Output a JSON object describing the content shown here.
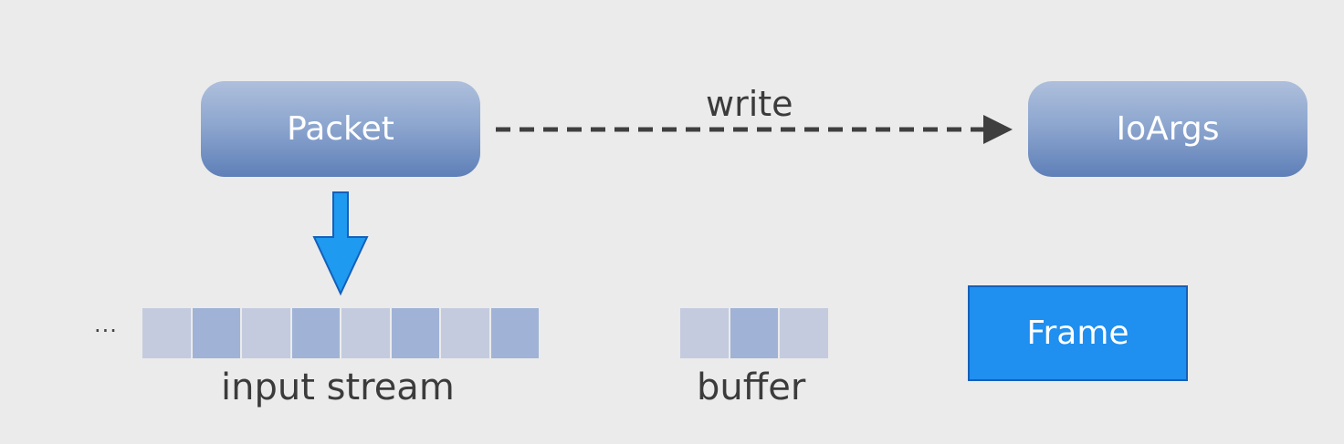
{
  "nodes": {
    "packet": "Packet",
    "ioargs": "IoArgs",
    "frame": "Frame"
  },
  "edges": {
    "write_label": "write"
  },
  "input_stream": {
    "label": "input stream",
    "ellipsis": "...",
    "cells": [
      "light",
      "dark",
      "light",
      "dark",
      "light",
      "dark",
      "light",
      "dark"
    ]
  },
  "buffer": {
    "label": "buffer",
    "cells": [
      "light",
      "dark",
      "light"
    ]
  },
  "colors": {
    "background": "#ebebeb",
    "node_gradient_top": "#aebfdc",
    "node_gradient_bottom": "#5e7fb8",
    "frame_fill": "#1f8ff0",
    "down_arrow_fill": "#1e9af0",
    "dashed_arrow": "#3f3f3f",
    "cell_light": "#c4cbde",
    "cell_dark": "#a0b3d6"
  }
}
